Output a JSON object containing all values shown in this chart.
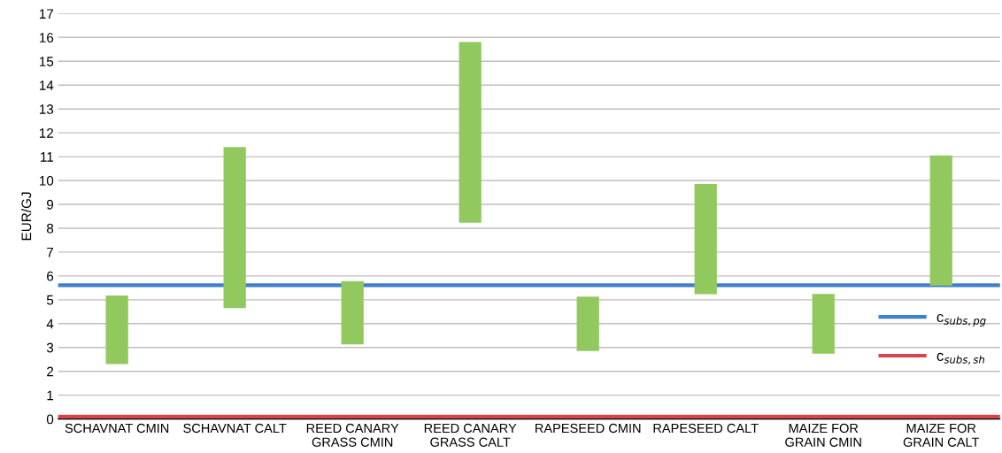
{
  "chart_data": {
    "type": "bar",
    "ylabel": "EUR/GJ",
    "categories": [
      "SCHAVNAT CMIN",
      "SCHAVNAT CALT",
      "REED CANARY\nGRASS CMIN",
      "REED CANARY\nGRASS CALT",
      "RAPESEED CMIN",
      "RAPESEED CALT",
      "MAIZE FOR\nGRAIN CMIN",
      "MAIZE FOR\nGRAIN CALT"
    ],
    "base": [
      2.3,
      4.65,
      3.13,
      8.23,
      2.85,
      5.23,
      2.74,
      5.6
    ],
    "values": [
      2.88,
      6.75,
      2.65,
      7.58,
      2.28,
      4.62,
      2.5,
      5.45
    ],
    "color": "#92c95f",
    "ylim": [
      0,
      17
    ],
    "yticks": [
      0,
      1,
      2,
      3,
      4,
      5,
      6,
      7,
      8,
      9,
      10,
      11,
      12,
      13,
      14,
      15,
      16,
      17
    ],
    "grid": "y",
    "legend": "right",
    "ref_lines": [
      {
        "axis": "y",
        "value": 5.61,
        "label": "c$_{subs,pg}$",
        "color": "#3f7fcb"
      },
      {
        "axis": "y",
        "value": 0.1,
        "label": "c$_{subs,sh}$",
        "color": "#d9434a"
      }
    ]
  }
}
